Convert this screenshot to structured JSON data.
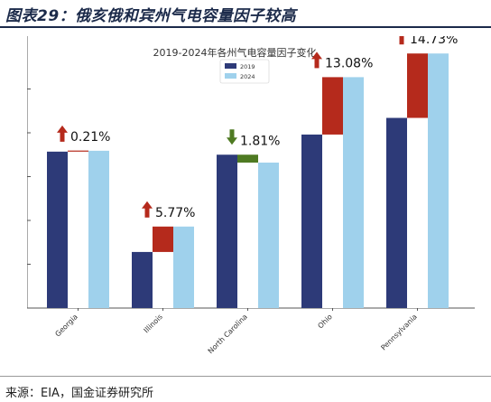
{
  "figure": {
    "title": "图表29：俄亥俄和宾州气电容量因子较高",
    "source": "来源：EIA，国金证券研究所"
  },
  "colors": {
    "series_2019": "#2d3a78",
    "series_2024": "#9fd1ec",
    "increase": "#b52a1c",
    "decrease": "#4e7a22",
    "header_text": "#1b2a4a"
  },
  "chart_data": {
    "type": "bar",
    "title": "2019-2024年各州气电容量因子变化",
    "categories": [
      "Georgia",
      "Illinois",
      "North Carolina",
      "Ohio",
      "Pennsylvania"
    ],
    "series": [
      {
        "name": "2019",
        "values": [
          35.7,
          12.8,
          35.0,
          39.6,
          43.4
        ]
      },
      {
        "name": "2024",
        "values": [
          35.9,
          18.6,
          33.2,
          52.7,
          58.1
        ]
      }
    ],
    "change_labels": [
      "0.21%",
      "5.77%",
      "1.81%",
      "13.08%",
      "14.73%"
    ],
    "change_direction": [
      "up",
      "up",
      "down",
      "up",
      "up"
    ],
    "y_ticks": [
      "0%",
      "10%",
      "20%",
      "30%",
      "40%",
      "50%"
    ],
    "ylim": [
      0,
      60
    ],
    "legend_position": "top-center",
    "grid": false
  }
}
